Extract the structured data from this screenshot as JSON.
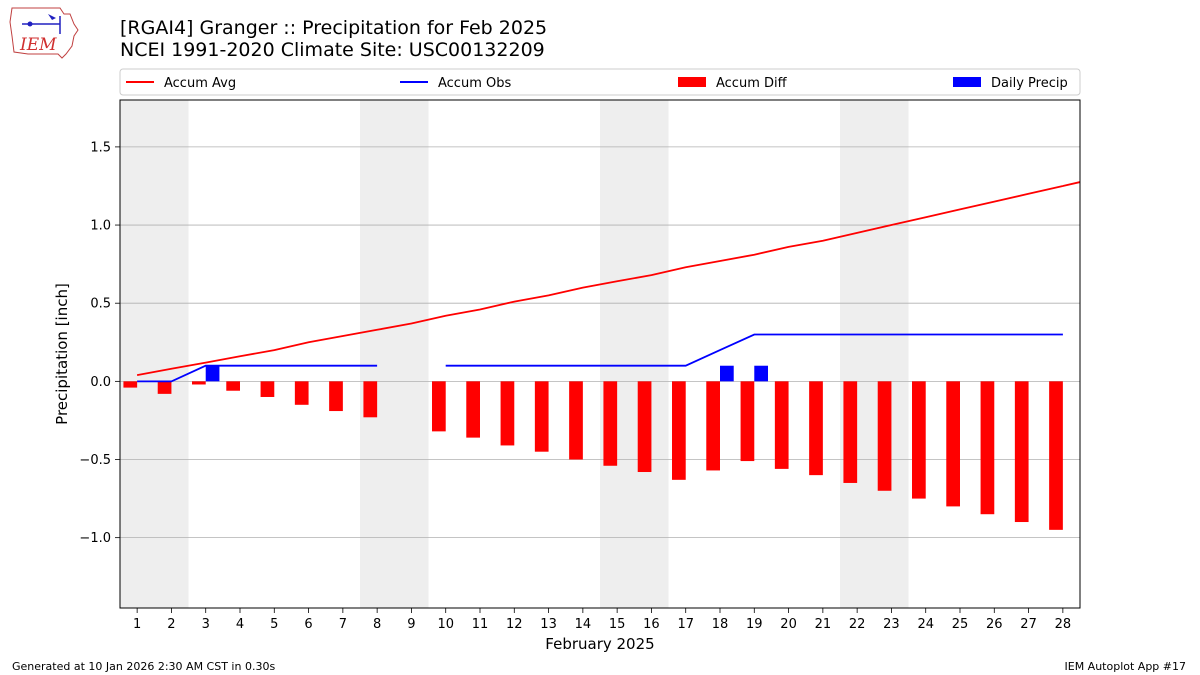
{
  "header": {
    "title_line1": "[RGAI4] Granger :: Precipitation for Feb 2025",
    "title_line2": "NCEI 1991-2020 Climate Site: USC00132209",
    "logo_text": "IEM"
  },
  "footer": {
    "left": "Generated at 10 Jan 2026 2:30 AM CST in 0.30s",
    "right": "IEM Autoplot App #17"
  },
  "colors": {
    "avg": "#ff0000",
    "obs": "#0000ff",
    "diff": "#ff0000",
    "daily": "#0000ff",
    "weekend_shade": "#eeeeee",
    "grid": "#b0b0b0"
  },
  "chart_data": {
    "type": "bar",
    "xlabel": "February 2025",
    "ylabel": "Precipitation [inch]",
    "xlim": [
      0.5,
      28.5
    ],
    "ylim": [
      -1.45,
      1.8
    ],
    "yticks": [
      -1.0,
      -0.5,
      0.0,
      0.5,
      1.0,
      1.5
    ],
    "ytick_labels": [
      "−1.0",
      "−0.5",
      "0.0",
      "0.5",
      "1.0",
      "1.5"
    ],
    "grid": "y",
    "legend_placement": "top",
    "legend": [
      "Accum Avg",
      "Accum Obs",
      "Accum Diff",
      "Daily Precip"
    ],
    "shaded_days": [
      [
        1,
        2
      ],
      [
        8,
        9
      ],
      [
        15,
        16
      ],
      [
        22,
        23
      ]
    ],
    "days": [
      1,
      2,
      3,
      4,
      5,
      6,
      7,
      8,
      9,
      10,
      11,
      12,
      13,
      14,
      15,
      16,
      17,
      18,
      19,
      20,
      21,
      22,
      23,
      24,
      25,
      26,
      27,
      28
    ],
    "accum_avg": [
      0.04,
      0.08,
      0.12,
      0.16,
      0.2,
      0.25,
      0.29,
      0.33,
      0.37,
      0.42,
      0.46,
      0.51,
      0.55,
      0.6,
      0.64,
      0.68,
      0.73,
      0.77,
      0.81,
      0.86,
      0.9,
      0.95,
      1.0,
      1.05,
      1.1,
      1.15,
      1.2,
      1.25
    ],
    "accum_obs": [
      0.0,
      0.0,
      0.1,
      0.1,
      0.1,
      0.1,
      0.1,
      0.1,
      null,
      0.1,
      0.1,
      0.1,
      0.1,
      0.1,
      0.1,
      0.1,
      0.1,
      0.2,
      0.3,
      0.3,
      0.3,
      0.3,
      0.3,
      0.3,
      0.3,
      0.3,
      0.3,
      0.3
    ],
    "accum_diff": [
      -0.04,
      -0.08,
      -0.02,
      -0.06,
      -0.1,
      -0.15,
      -0.19,
      -0.23,
      null,
      -0.32,
      -0.36,
      -0.41,
      -0.45,
      -0.5,
      -0.54,
      -0.58,
      -0.63,
      -0.57,
      -0.51,
      -0.56,
      -0.6,
      -0.65,
      -0.7,
      -0.75,
      -0.8,
      -0.85,
      -0.9,
      -0.95
    ],
    "daily_precip": [
      0,
      0,
      0.1,
      0,
      0,
      0,
      0,
      0,
      null,
      0,
      0,
      0,
      0,
      0,
      0,
      0,
      0,
      0.1,
      0.1,
      0,
      0,
      0,
      0,
      0,
      0,
      0,
      0,
      0
    ]
  }
}
